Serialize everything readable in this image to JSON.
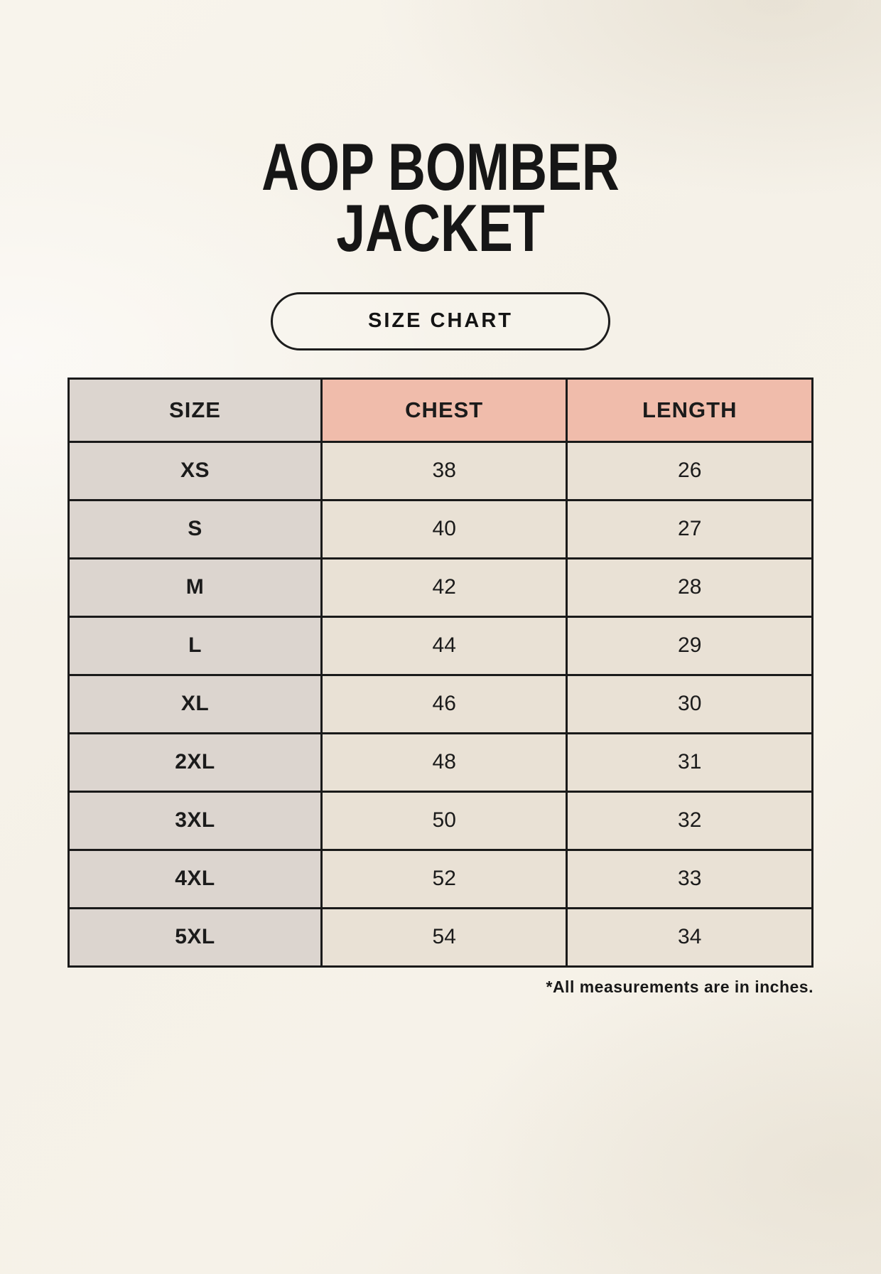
{
  "page": {
    "title_line1": "AOP BOMBER",
    "title_line2": "JACKET",
    "badge_label": "SIZE CHART",
    "footnote": "*All measurements are in inches."
  },
  "colors": {
    "background": "#f5f1e8",
    "size_column_bg": "#dcd5cf",
    "accent_header_bg": "#f0bcab",
    "data_cell_bg": "#e9e1d5",
    "border": "#1a1a1a",
    "text": "#1b1b1b"
  },
  "table": {
    "columns": [
      "SIZE",
      "CHEST",
      "LENGTH"
    ],
    "rows": [
      {
        "size": "XS",
        "chest": "38",
        "length": "26"
      },
      {
        "size": "S",
        "chest": "40",
        "length": "27"
      },
      {
        "size": "M",
        "chest": "42",
        "length": "28"
      },
      {
        "size": "L",
        "chest": "44",
        "length": "29"
      },
      {
        "size": "XL",
        "chest": "46",
        "length": "30"
      },
      {
        "size": "2XL",
        "chest": "48",
        "length": "31"
      },
      {
        "size": "3XL",
        "chest": "50",
        "length": "32"
      },
      {
        "size": "4XL",
        "chest": "52",
        "length": "33"
      },
      {
        "size": "5XL",
        "chest": "54",
        "length": "34"
      }
    ]
  },
  "chart_data": {
    "type": "table",
    "title": "AOP BOMBER JACKET",
    "columns": [
      "SIZE",
      "CHEST",
      "LENGTH"
    ],
    "rows": [
      [
        "XS",
        38,
        26
      ],
      [
        "S",
        40,
        27
      ],
      [
        "M",
        42,
        28
      ],
      [
        "L",
        44,
        29
      ],
      [
        "XL",
        46,
        30
      ],
      [
        "2XL",
        48,
        31
      ],
      [
        "3XL",
        50,
        32
      ],
      [
        "4XL",
        52,
        33
      ],
      [
        "5XL",
        54,
        34
      ]
    ],
    "note": "*All measurements are in inches.",
    "units": "inches"
  }
}
